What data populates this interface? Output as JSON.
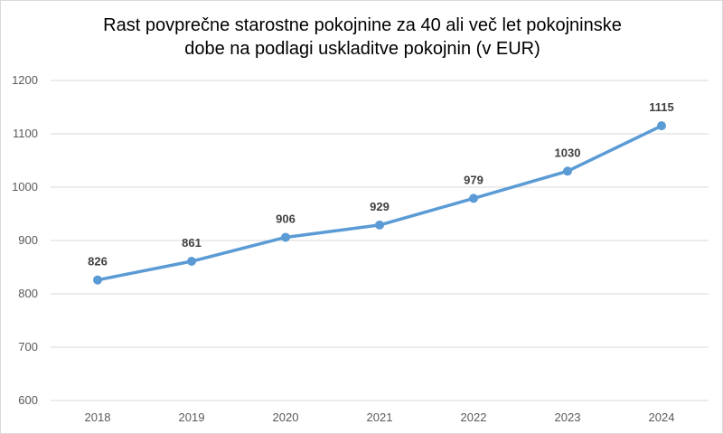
{
  "chart_data": {
    "type": "line",
    "title_lines": [
      "Rast povprečne starostne pokojnine za 40 ali več let pokojninske",
      "dobe na podlagi uskladitve pokojnin (v EUR)"
    ],
    "xlabel": "",
    "ylabel": "",
    "categories": [
      "2018",
      "2019",
      "2020",
      "2021",
      "2022",
      "2023",
      "2024"
    ],
    "series": [
      {
        "values": [
          826,
          861,
          906,
          929,
          979,
          1030,
          1115
        ],
        "color": "#5b9bd5"
      }
    ],
    "ylim": [
      600,
      1200
    ],
    "yticks": [
      600,
      700,
      800,
      900,
      1000,
      1100,
      1200
    ],
    "grid": true,
    "legend": "none",
    "data_labels": [
      "826",
      "861",
      "906",
      "929",
      "979",
      "1030",
      "1115"
    ]
  }
}
